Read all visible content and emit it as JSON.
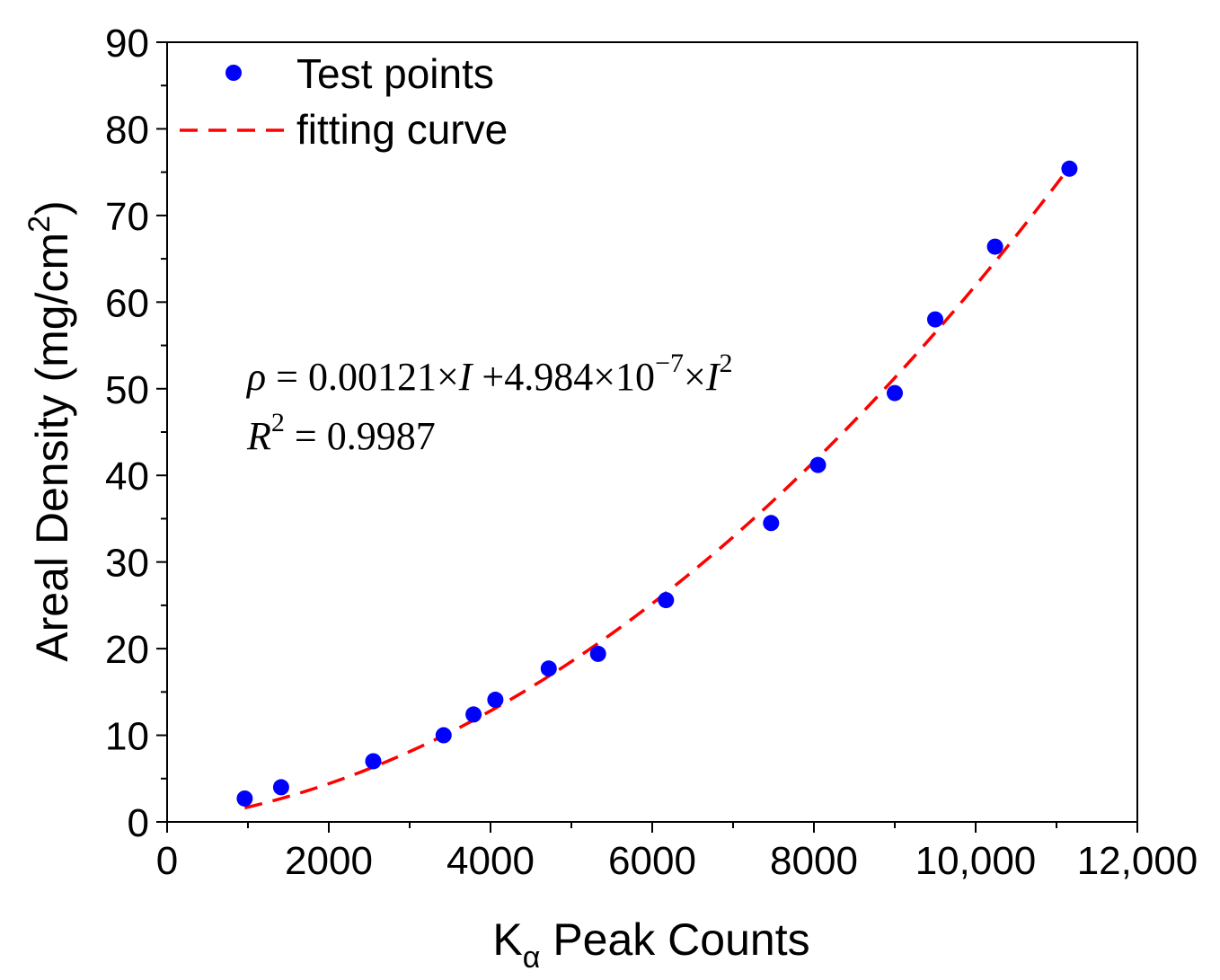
{
  "chart_data": {
    "type": "scatter",
    "xlabel": {
      "main": "K",
      "sub": "α",
      "rest": " Peak Counts"
    },
    "ylabel": {
      "main": "Areal Density (mg/cm",
      "sup": "2",
      "end": ")"
    },
    "xlim": [
      0,
      12000
    ],
    "ylim": [
      0,
      90
    ],
    "x_ticks": [
      0,
      2000,
      4000,
      6000,
      8000,
      10000,
      12000
    ],
    "x_tick_labels": [
      "0",
      "2000",
      "4000",
      "6000",
      "8000",
      "10,000",
      "12,000"
    ],
    "y_ticks": [
      0,
      10,
      20,
      30,
      40,
      50,
      60,
      70,
      80,
      90
    ],
    "y_tick_labels": [
      "0",
      "10",
      "20",
      "30",
      "40",
      "50",
      "60",
      "70",
      "80",
      "90"
    ],
    "series": [
      {
        "name": "Test points",
        "kind": "scatter",
        "color": "#0000ff",
        "points": [
          {
            "x": 960,
            "y": 2.7
          },
          {
            "x": 1410,
            "y": 4.0
          },
          {
            "x": 2550,
            "y": 7.0
          },
          {
            "x": 3420,
            "y": 10.0
          },
          {
            "x": 3790,
            "y": 12.4
          },
          {
            "x": 4060,
            "y": 14.1
          },
          {
            "x": 4720,
            "y": 17.7
          },
          {
            "x": 5330,
            "y": 19.4
          },
          {
            "x": 6170,
            "y": 25.6
          },
          {
            "x": 7470,
            "y": 34.5
          },
          {
            "x": 8050,
            "y": 41.2
          },
          {
            "x": 9000,
            "y": 49.5
          },
          {
            "x": 9500,
            "y": 58.0
          },
          {
            "x": 10240,
            "y": 66.4
          },
          {
            "x": 11160,
            "y": 75.4
          }
        ]
      },
      {
        "name": "fitting curve",
        "kind": "line",
        "style": "dashed",
        "color": "#ff0000",
        "equation": {
          "a1": 0.00121,
          "a2": 4.984e-07
        },
        "x_range": [
          960,
          11160
        ]
      }
    ],
    "legend_position": "top-left",
    "annotation": {
      "rho": "ρ",
      "eq_mid": " = 0.00121×",
      "I1": "I",
      "eq_mid2": " +4.984×10",
      "exp": "−7",
      "times": "×",
      "I2": "I",
      "sq": "2",
      "r": "R",
      "r_sup": "2",
      "r_value": " = 0.9987"
    }
  }
}
